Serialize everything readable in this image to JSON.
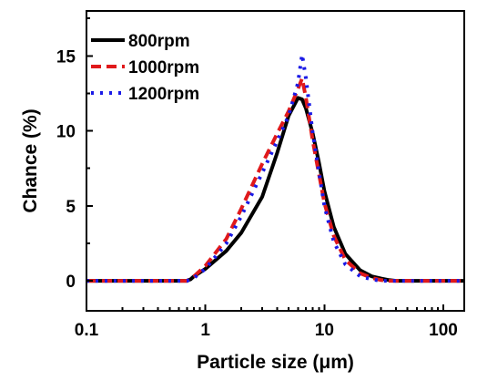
{
  "chart_data": {
    "type": "line",
    "title": "",
    "xlabel": "Particle size (μm)",
    "ylabel": "Chance (%)",
    "xscale": "log",
    "xlim": [
      0.1,
      150
    ],
    "ylim": [
      -2,
      18
    ],
    "xticks": [
      {
        "value": 0.1,
        "label": "0.1"
      },
      {
        "value": 1,
        "label": "1"
      },
      {
        "value": 10,
        "label": "10"
      },
      {
        "value": 100,
        "label": "100"
      }
    ],
    "yticks": [
      {
        "value": 0,
        "label": "0"
      },
      {
        "value": 5,
        "label": "5"
      },
      {
        "value": 10,
        "label": "10"
      },
      {
        "value": 15,
        "label": "15"
      }
    ],
    "grid": false,
    "legend_position": "top-left",
    "series": [
      {
        "name": "800rpm",
        "color": "#000000",
        "dash": "solid",
        "x": [
          0.1,
          0.7,
          0.75,
          0.8,
          1.0,
          1.5,
          2.0,
          3.0,
          4.0,
          5.0,
          6.0,
          6.5,
          7.0,
          8.0,
          9.0,
          10.0,
          12.0,
          15.0,
          20.0,
          25.0,
          30.0,
          35.0,
          40.0,
          150.0
        ],
        "y": [
          0,
          0,
          0.1,
          0.3,
          0.8,
          2.0,
          3.2,
          5.6,
          8.5,
          11.0,
          12.2,
          12.1,
          11.5,
          9.8,
          7.9,
          6.0,
          3.6,
          1.8,
          0.7,
          0.3,
          0.15,
          0.05,
          0,
          0
        ]
      },
      {
        "name": "1000rpm",
        "color": "#e0191b",
        "dash": "dashed",
        "x": [
          0.1,
          0.7,
          0.8,
          1.0,
          1.5,
          2.0,
          3.0,
          4.0,
          5.0,
          6.0,
          6.5,
          7.0,
          8.0,
          10.0,
          12.0,
          15.0,
          20.0,
          25.0,
          30.0,
          35.0,
          150.0
        ],
        "y": [
          0,
          0,
          0.3,
          1.0,
          2.8,
          4.8,
          7.8,
          9.8,
          11.3,
          12.8,
          13.5,
          12.2,
          9.3,
          5.2,
          3.0,
          1.4,
          0.5,
          0.2,
          0.05,
          0,
          0
        ]
      },
      {
        "name": "1200rpm",
        "color": "#1a1ae6",
        "dash": "dotted",
        "x": [
          0.1,
          0.7,
          0.8,
          1.0,
          1.5,
          2.0,
          3.0,
          4.0,
          5.0,
          6.0,
          6.5,
          7.0,
          8.0,
          10.0,
          12.0,
          15.0,
          20.0,
          25.0,
          30.0,
          150.0
        ],
        "y": [
          0,
          0,
          0.2,
          0.8,
          2.5,
          4.3,
          7.2,
          9.3,
          11.0,
          13.2,
          15.1,
          13.5,
          9.8,
          5.0,
          2.6,
          1.1,
          0.3,
          0.1,
          0,
          0
        ]
      }
    ]
  }
}
